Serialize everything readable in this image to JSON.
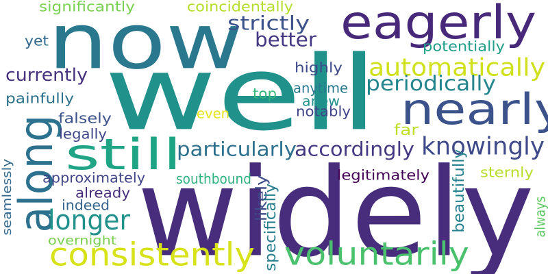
{
  "words": [
    {
      "text": "now",
      "color": "#2a788e",
      "vertical": false
    },
    {
      "text": "well",
      "color": "#21918c",
      "vertical": false
    },
    {
      "text": "widely",
      "color": "#472d7b",
      "vertical": false
    },
    {
      "text": "eagerly",
      "color": "#482878",
      "vertical": false
    },
    {
      "text": "nearly",
      "color": "#3b528b",
      "vertical": false
    },
    {
      "text": "along",
      "color": "#2c718e",
      "vertical": true
    },
    {
      "text": "still",
      "color": "#20a486",
      "vertical": false
    },
    {
      "text": "consistently",
      "color": "#d8e219",
      "vertical": false
    },
    {
      "text": "voluntarily",
      "color": "#4ac16d",
      "vertical": false
    },
    {
      "text": "automatically",
      "color": "#d0e11c",
      "vertical": false
    },
    {
      "text": "knowingly",
      "color": "#3e4a89",
      "vertical": false
    },
    {
      "text": "periodically",
      "color": "#25858e",
      "vertical": false
    },
    {
      "text": "accordingly",
      "color": "#443983",
      "vertical": false
    },
    {
      "text": "particularly",
      "color": "#2d708e",
      "vertical": false
    },
    {
      "text": "longer",
      "color": "#21918c",
      "vertical": false
    },
    {
      "text": "strictly",
      "color": "#3b528b",
      "vertical": false
    },
    {
      "text": "better",
      "color": "#453781",
      "vertical": false
    },
    {
      "text": "currently",
      "color": "#46327e",
      "vertical": false
    },
    {
      "text": "significantly",
      "color": "#7ad151",
      "vertical": false
    },
    {
      "text": "coincidentally",
      "color": "#b5de2b",
      "vertical": false
    },
    {
      "text": "potentially",
      "color": "#1f9e89",
      "vertical": false
    },
    {
      "text": "highly",
      "color": "#3e4989",
      "vertical": false
    },
    {
      "text": "anytime",
      "color": "#2a788e",
      "vertical": false
    },
    {
      "text": "anew",
      "color": "#21918c",
      "vertical": false
    },
    {
      "text": "notably",
      "color": "#414487",
      "vertical": false
    },
    {
      "text": "top",
      "color": "#35b779",
      "vertical": false
    },
    {
      "text": "even",
      "color": "#e5e419",
      "vertical": false
    },
    {
      "text": "far",
      "color": "#bddf26",
      "vertical": false
    },
    {
      "text": "yet",
      "color": "#31688e",
      "vertical": false
    },
    {
      "text": "painfully",
      "color": "#2c728e",
      "vertical": false
    },
    {
      "text": "falsely",
      "color": "#3b528b",
      "vertical": false
    },
    {
      "text": "legally",
      "color": "#404688",
      "vertical": false
    },
    {
      "text": "seamlessly",
      "color": "#31688e",
      "vertical": true
    },
    {
      "text": "approximately",
      "color": "#414487",
      "vertical": false
    },
    {
      "text": "already",
      "color": "#472c7a",
      "vertical": false
    },
    {
      "text": "indeed",
      "color": "#33638d",
      "vertical": false
    },
    {
      "text": "overnight",
      "color": "#7ad151",
      "vertical": false
    },
    {
      "text": "southbound",
      "color": "#2db27d",
      "vertical": false
    },
    {
      "text": "likely",
      "color": "#3e4c8a",
      "vertical": true
    },
    {
      "text": "specifically",
      "color": "#277f8e",
      "vertical": true
    },
    {
      "text": "legitimately",
      "color": "#440154",
      "vertical": false
    },
    {
      "text": "beautifully",
      "color": "#26828e",
      "vertical": true
    },
    {
      "text": "sternly",
      "color": "#b8de29",
      "vertical": false
    },
    {
      "text": "always",
      "color": "#5ec962",
      "vertical": true
    }
  ]
}
